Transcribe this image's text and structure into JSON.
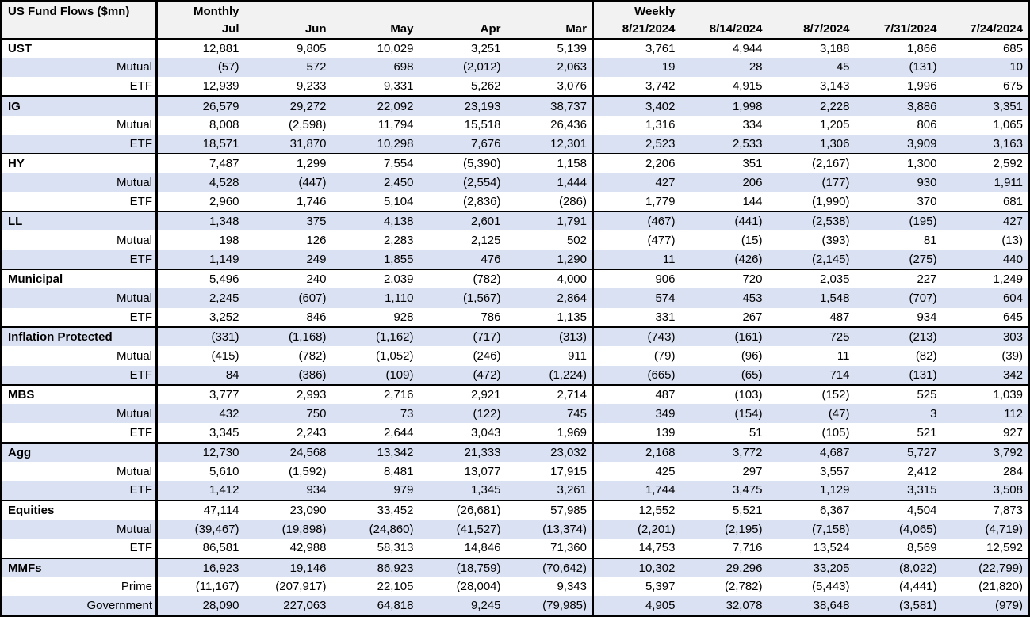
{
  "colors": {
    "band": "#d9e1f2",
    "header_bg": "#f2f2f2",
    "border": "#000000",
    "text": "#000000"
  },
  "table": {
    "title": "US Fund Flows ($mn)",
    "monthly_label": "Monthly",
    "weekly_label": "Weekly",
    "monthly_columns": [
      "Jul",
      "Jun",
      "May",
      "Apr",
      "Mar"
    ],
    "weekly_columns": [
      "8/21/2024",
      "8/14/2024",
      "8/7/2024",
      "7/31/2024",
      "7/24/2024"
    ],
    "groups": [
      {
        "name": "UST",
        "rows": [
          {
            "label": "UST",
            "monthly": [
              "12,881",
              "9,805",
              "10,029",
              "3,251",
              "5,139"
            ],
            "weekly": [
              "3,761",
              "4,944",
              "3,188",
              "1,866",
              "685"
            ]
          },
          {
            "label": "Mutual",
            "monthly": [
              "(57)",
              "572",
              "698",
              "(2,012)",
              "2,063"
            ],
            "weekly": [
              "19",
              "28",
              "45",
              "(131)",
              "10"
            ]
          },
          {
            "label": "ETF",
            "monthly": [
              "12,939",
              "9,233",
              "9,331",
              "5,262",
              "3,076"
            ],
            "weekly": [
              "3,742",
              "4,915",
              "3,143",
              "1,996",
              "675"
            ]
          }
        ]
      },
      {
        "name": "IG",
        "rows": [
          {
            "label": "IG",
            "monthly": [
              "26,579",
              "29,272",
              "22,092",
              "23,193",
              "38,737"
            ],
            "weekly": [
              "3,402",
              "1,998",
              "2,228",
              "3,886",
              "3,351"
            ]
          },
          {
            "label": "Mutual",
            "monthly": [
              "8,008",
              "(2,598)",
              "11,794",
              "15,518",
              "26,436"
            ],
            "weekly": [
              "1,316",
              "334",
              "1,205",
              "806",
              "1,065"
            ]
          },
          {
            "label": "ETF",
            "monthly": [
              "18,571",
              "31,870",
              "10,298",
              "7,676",
              "12,301"
            ],
            "weekly": [
              "2,523",
              "2,533",
              "1,306",
              "3,909",
              "3,163"
            ]
          }
        ]
      },
      {
        "name": "HY",
        "rows": [
          {
            "label": "HY",
            "monthly": [
              "7,487",
              "1,299",
              "7,554",
              "(5,390)",
              "1,158"
            ],
            "weekly": [
              "2,206",
              "351",
              "(2,167)",
              "1,300",
              "2,592"
            ]
          },
          {
            "label": "Mutual",
            "monthly": [
              "4,528",
              "(447)",
              "2,450",
              "(2,554)",
              "1,444"
            ],
            "weekly": [
              "427",
              "206",
              "(177)",
              "930",
              "1,911"
            ]
          },
          {
            "label": "ETF",
            "monthly": [
              "2,960",
              "1,746",
              "5,104",
              "(2,836)",
              "(286)"
            ],
            "weekly": [
              "1,779",
              "144",
              "(1,990)",
              "370",
              "681"
            ]
          }
        ]
      },
      {
        "name": "LL",
        "rows": [
          {
            "label": "LL",
            "monthly": [
              "1,348",
              "375",
              "4,138",
              "2,601",
              "1,791"
            ],
            "weekly": [
              "(467)",
              "(441)",
              "(2,538)",
              "(195)",
              "427"
            ]
          },
          {
            "label": "Mutual",
            "monthly": [
              "198",
              "126",
              "2,283",
              "2,125",
              "502"
            ],
            "weekly": [
              "(477)",
              "(15)",
              "(393)",
              "81",
              "(13)"
            ]
          },
          {
            "label": "ETF",
            "monthly": [
              "1,149",
              "249",
              "1,855",
              "476",
              "1,290"
            ],
            "weekly": [
              "11",
              "(426)",
              "(2,145)",
              "(275)",
              "440"
            ]
          }
        ]
      },
      {
        "name": "Municipal",
        "rows": [
          {
            "label": "Municipal",
            "monthly": [
              "5,496",
              "240",
              "2,039",
              "(782)",
              "4,000"
            ],
            "weekly": [
              "906",
              "720",
              "2,035",
              "227",
              "1,249"
            ]
          },
          {
            "label": "Mutual",
            "monthly": [
              "2,245",
              "(607)",
              "1,110",
              "(1,567)",
              "2,864"
            ],
            "weekly": [
              "574",
              "453",
              "1,548",
              "(707)",
              "604"
            ]
          },
          {
            "label": "ETF",
            "monthly": [
              "3,252",
              "846",
              "928",
              "786",
              "1,135"
            ],
            "weekly": [
              "331",
              "267",
              "487",
              "934",
              "645"
            ]
          }
        ]
      },
      {
        "name": "Inflation Protected",
        "rows": [
          {
            "label": "Inflation Protected",
            "monthly": [
              "(331)",
              "(1,168)",
              "(1,162)",
              "(717)",
              "(313)"
            ],
            "weekly": [
              "(743)",
              "(161)",
              "725",
              "(213)",
              "303"
            ]
          },
          {
            "label": "Mutual",
            "monthly": [
              "(415)",
              "(782)",
              "(1,052)",
              "(246)",
              "911"
            ],
            "weekly": [
              "(79)",
              "(96)",
              "11",
              "(82)",
              "(39)"
            ]
          },
          {
            "label": "ETF",
            "monthly": [
              "84",
              "(386)",
              "(109)",
              "(472)",
              "(1,224)"
            ],
            "weekly": [
              "(665)",
              "(65)",
              "714",
              "(131)",
              "342"
            ]
          }
        ]
      },
      {
        "name": "MBS",
        "rows": [
          {
            "label": "MBS",
            "monthly": [
              "3,777",
              "2,993",
              "2,716",
              "2,921",
              "2,714"
            ],
            "weekly": [
              "487",
              "(103)",
              "(152)",
              "525",
              "1,039"
            ]
          },
          {
            "label": "Mutual",
            "monthly": [
              "432",
              "750",
              "73",
              "(122)",
              "745"
            ],
            "weekly": [
              "349",
              "(154)",
              "(47)",
              "3",
              "112"
            ]
          },
          {
            "label": "ETF",
            "monthly": [
              "3,345",
              "2,243",
              "2,644",
              "3,043",
              "1,969"
            ],
            "weekly": [
              "139",
              "51",
              "(105)",
              "521",
              "927"
            ]
          }
        ]
      },
      {
        "name": "Agg",
        "rows": [
          {
            "label": "Agg",
            "monthly": [
              "12,730",
              "24,568",
              "13,342",
              "21,333",
              "23,032"
            ],
            "weekly": [
              "2,168",
              "3,772",
              "4,687",
              "5,727",
              "3,792"
            ]
          },
          {
            "label": "Mutual",
            "monthly": [
              "5,610",
              "(1,592)",
              "8,481",
              "13,077",
              "17,915"
            ],
            "weekly": [
              "425",
              "297",
              "3,557",
              "2,412",
              "284"
            ]
          },
          {
            "label": "ETF",
            "monthly": [
              "1,412",
              "934",
              "979",
              "1,345",
              "3,261"
            ],
            "weekly": [
              "1,744",
              "3,475",
              "1,129",
              "3,315",
              "3,508"
            ]
          }
        ]
      },
      {
        "name": "Equities",
        "rows": [
          {
            "label": "Equities",
            "monthly": [
              "47,114",
              "23,090",
              "33,452",
              "(26,681)",
              "57,985"
            ],
            "weekly": [
              "12,552",
              "5,521",
              "6,367",
              "4,504",
              "7,873"
            ]
          },
          {
            "label": "Mutual",
            "monthly": [
              "(39,467)",
              "(19,898)",
              "(24,860)",
              "(41,527)",
              "(13,374)"
            ],
            "weekly": [
              "(2,201)",
              "(2,195)",
              "(7,158)",
              "(4,065)",
              "(4,719)"
            ]
          },
          {
            "label": "ETF",
            "monthly": [
              "86,581",
              "42,988",
              "58,313",
              "14,846",
              "71,360"
            ],
            "weekly": [
              "14,753",
              "7,716",
              "13,524",
              "8,569",
              "12,592"
            ]
          }
        ]
      },
      {
        "name": "MMFs",
        "rows": [
          {
            "label": "MMFs",
            "monthly": [
              "16,923",
              "19,146",
              "86,923",
              "(18,759)",
              "(70,642)"
            ],
            "weekly": [
              "10,302",
              "29,296",
              "33,205",
              "(8,022)",
              "(22,799)"
            ]
          },
          {
            "label": "Prime",
            "monthly": [
              "(11,167)",
              "(207,917)",
              "22,105",
              "(28,004)",
              "9,343"
            ],
            "weekly": [
              "5,397",
              "(2,782)",
              "(5,443)",
              "(4,441)",
              "(21,820)"
            ]
          },
          {
            "label": "Government",
            "monthly": [
              "28,090",
              "227,063",
              "64,818",
              "9,245",
              "(79,985)"
            ],
            "weekly": [
              "4,905",
              "32,078",
              "38,648",
              "(3,581)",
              "(979)"
            ]
          }
        ]
      }
    ]
  }
}
